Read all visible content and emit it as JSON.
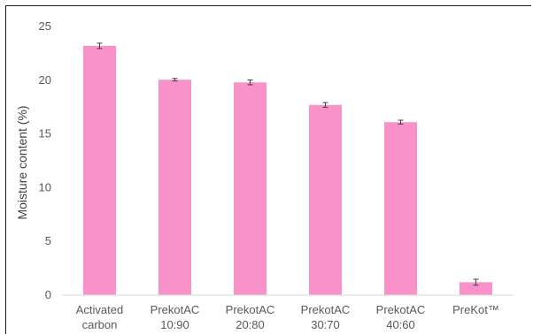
{
  "chart_data": {
    "type": "bar",
    "title": "",
    "xlabel": "",
    "ylabel": "Moisture content (%)",
    "ylim": [
      0,
      25
    ],
    "yticks": [
      0,
      5,
      10,
      15,
      20,
      25
    ],
    "grid": false,
    "legend": "none",
    "bar_color": "#f992c8",
    "error_color": "#404040",
    "categories": [
      [
        "Activated",
        "carbon"
      ],
      [
        "PrekotAC",
        "10:90"
      ],
      [
        "PrekotAC",
        "20:80"
      ],
      [
        "PrekotAC",
        "30:70"
      ],
      [
        "PrekotAC",
        "40:60"
      ],
      [
        "PreKot™"
      ]
    ],
    "values": [
      23.2,
      20.05,
      19.8,
      17.7,
      16.1,
      1.2
    ],
    "errors": [
      0.25,
      0.12,
      0.22,
      0.22,
      0.18,
      0.28
    ]
  }
}
